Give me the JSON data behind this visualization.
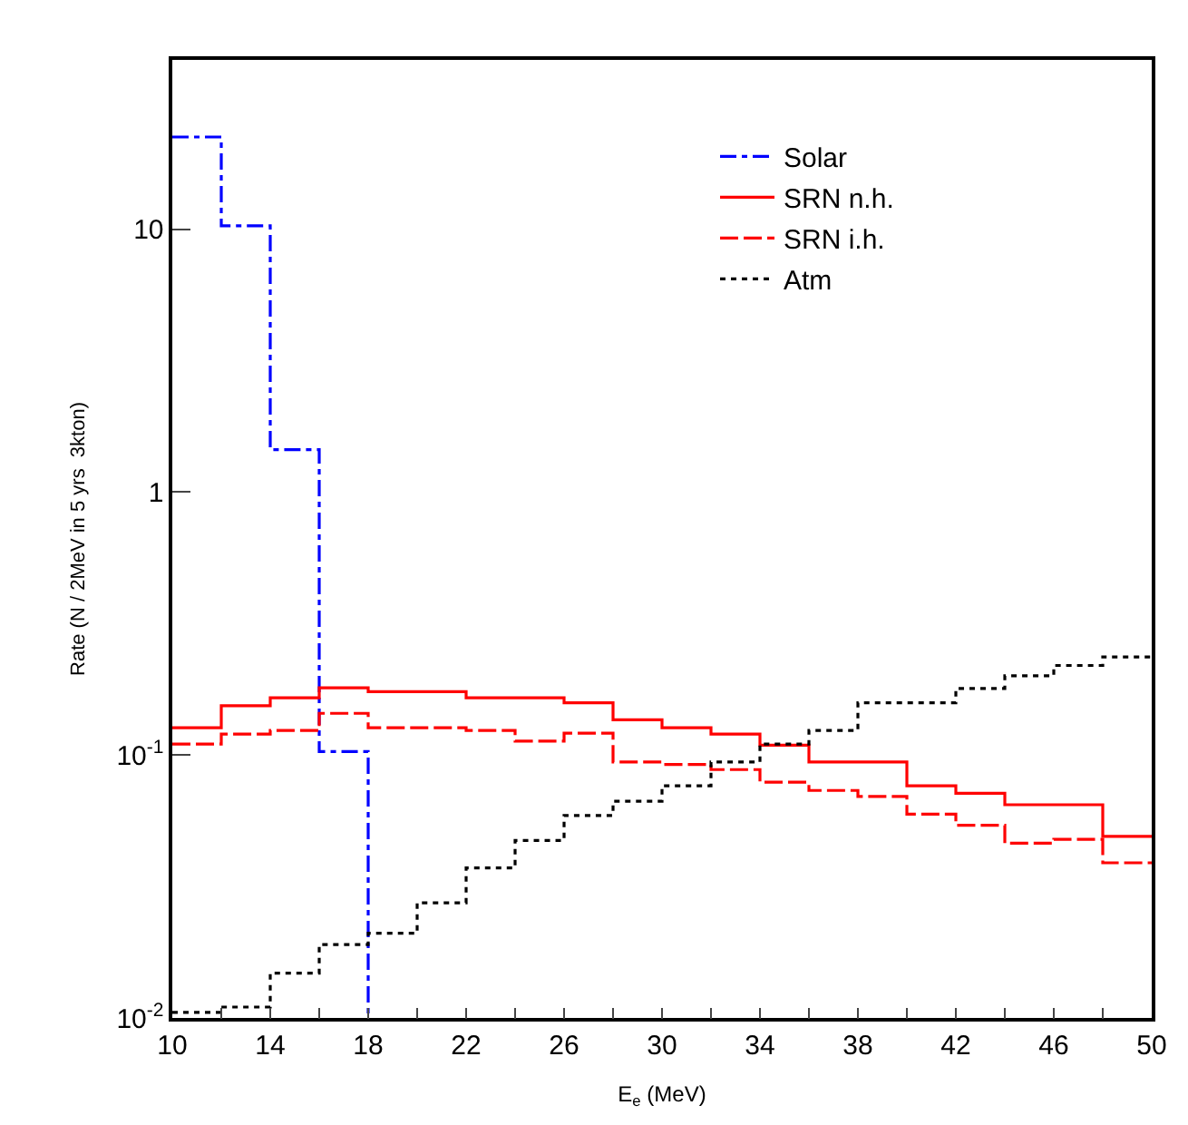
{
  "chart_data": {
    "type": "histogram",
    "xlabel": "E$_{e}$ (MeV)",
    "ylabel": "Rate (N / 2MeV in 5 yrs  3kton)",
    "bins": [
      10,
      12,
      14,
      16,
      18,
      20,
      22,
      24,
      26,
      28,
      30,
      32,
      34,
      36,
      38,
      40,
      42,
      44,
      46,
      48,
      50
    ],
    "series": [
      {
        "name": "Solar",
        "color": "#0000ff",
        "line_style": "dashdot",
        "bins": [
          10,
          12,
          14,
          16,
          18
        ],
        "values": [
          22.4,
          10.3,
          1.45,
          0.103
        ]
      },
      {
        "name": "SRN n.h.",
        "color": "#ff0000",
        "line_style": "solid",
        "values": [
          0.127,
          0.154,
          0.165,
          0.18,
          0.174,
          0.174,
          0.165,
          0.165,
          0.158,
          0.136,
          0.127,
          0.12,
          0.109,
          0.094,
          0.094,
          0.0764,
          0.0715,
          0.0647,
          0.0647,
          0.049
        ]
      },
      {
        "name": "SRN i.h.",
        "color": "#fe0000",
        "line_style": "dashed",
        "values": [
          0.11,
          0.12,
          0.124,
          0.144,
          0.127,
          0.127,
          0.124,
          0.113,
          0.121,
          0.094,
          0.092,
          0.088,
          0.0788,
          0.0733,
          0.0696,
          0.0596,
          0.054,
          0.0462,
          0.0478,
          0.0389
        ]
      },
      {
        "name": "Atm",
        "color": "#000000",
        "line_style": "dotted",
        "values": [
          0.0105,
          0.011,
          0.0148,
          0.019,
          0.021,
          0.0274,
          0.0372,
          0.0473,
          0.0589,
          0.0667,
          0.0764,
          0.094,
          0.11,
          0.124,
          0.158,
          0.158,
          0.179,
          0.2,
          0.219,
          0.236
        ]
      }
    ],
    "log": "y",
    "xlim": [
      10,
      50
    ],
    "ylim": [
      0.01,
      44
    ],
    "xticks": [
      10,
      {
        "value": 12,
        "label": null
      },
      14,
      {
        "value": 16,
        "label": null
      },
      18,
      {
        "value": 20,
        "label": null
      },
      22,
      {
        "value": 24,
        "label": null
      },
      26,
      {
        "value": 28,
        "label": null
      },
      30,
      {
        "value": 32,
        "label": null
      },
      34,
      {
        "value": 36,
        "label": null
      },
      38,
      {
        "value": 40,
        "label": null
      },
      42,
      {
        "value": 44,
        "label": null
      },
      46,
      {
        "value": 48,
        "label": null
      },
      50
    ],
    "yticks": [
      {
        "value": 0.01,
        "label": "10$^{-2}$"
      },
      {
        "value": 0.1,
        "label": "10$^{-1}$"
      },
      1,
      10
    ],
    "legend": "top right"
  }
}
